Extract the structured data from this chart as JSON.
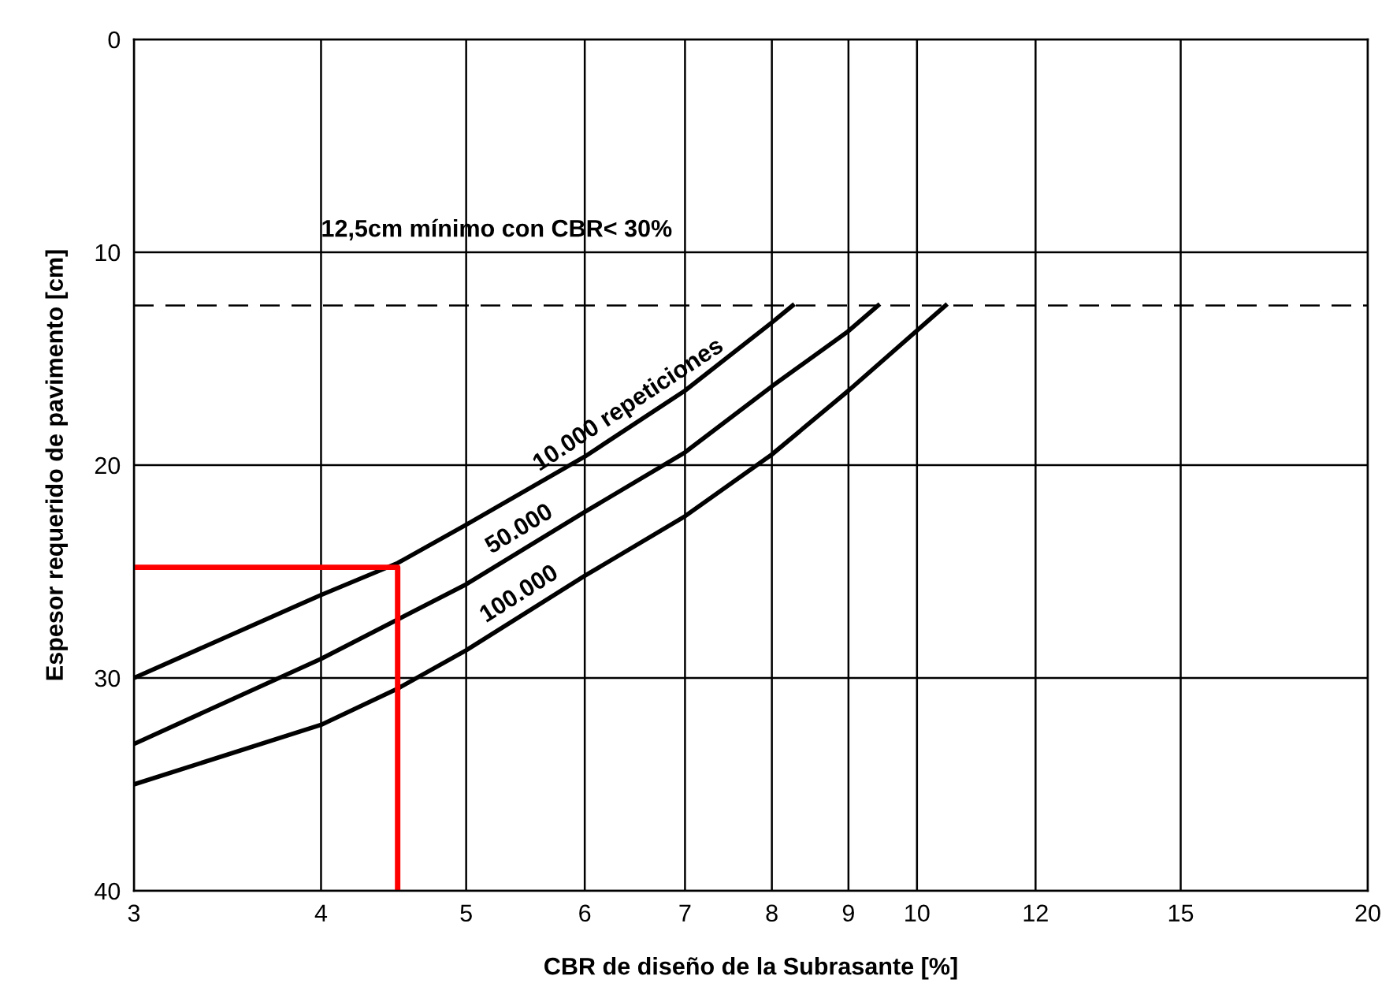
{
  "chart_data": {
    "type": "line",
    "xlabel": "CBR de diseño de la Subrasante [%]",
    "ylabel": "Espesor requerido de pavimento [cm]",
    "log": "x",
    "xlim": [
      3,
      20
    ],
    "xticks": [
      3,
      4,
      5,
      6,
      7,
      8,
      9,
      10,
      12,
      15,
      20
    ],
    "ylim": [
      40,
      0
    ],
    "yticks": [
      0,
      10,
      20,
      30,
      40
    ],
    "grid": true,
    "ref_lines": [
      {
        "axis": "y",
        "value": 12.5,
        "label": "12,5cm mínimo con CBR< 30%",
        "color": "#000000",
        "line_style": "dashed"
      }
    ],
    "series": [
      {
        "name": "10.000 repeticiones",
        "color": "#000000",
        "x": [
          3,
          4,
          4.5,
          5,
          6,
          7,
          8,
          8.26
        ],
        "values": [
          30,
          26.1,
          24.6,
          22.8,
          19.6,
          16.5,
          13.3,
          12.5
        ]
      },
      {
        "name": "50.000",
        "color": "#000000",
        "x": [
          3,
          4,
          5,
          6,
          7,
          8,
          9,
          9.42
        ],
        "values": [
          33.1,
          29.1,
          25.6,
          22.2,
          19.4,
          16.3,
          13.7,
          12.5
        ]
      },
      {
        "name": "100.000",
        "color": "#000000",
        "x": [
          3,
          4,
          4.5,
          5,
          6,
          7,
          8,
          9,
          10.45
        ],
        "values": [
          35,
          32.2,
          30.5,
          28.7,
          25.2,
          22.4,
          19.5,
          16.5,
          12.5
        ]
      },
      {
        "color": "#ff0000",
        "x": [
          3,
          4.5,
          4.5
        ],
        "values": [
          24.8,
          24.8,
          40
        ]
      }
    ]
  }
}
